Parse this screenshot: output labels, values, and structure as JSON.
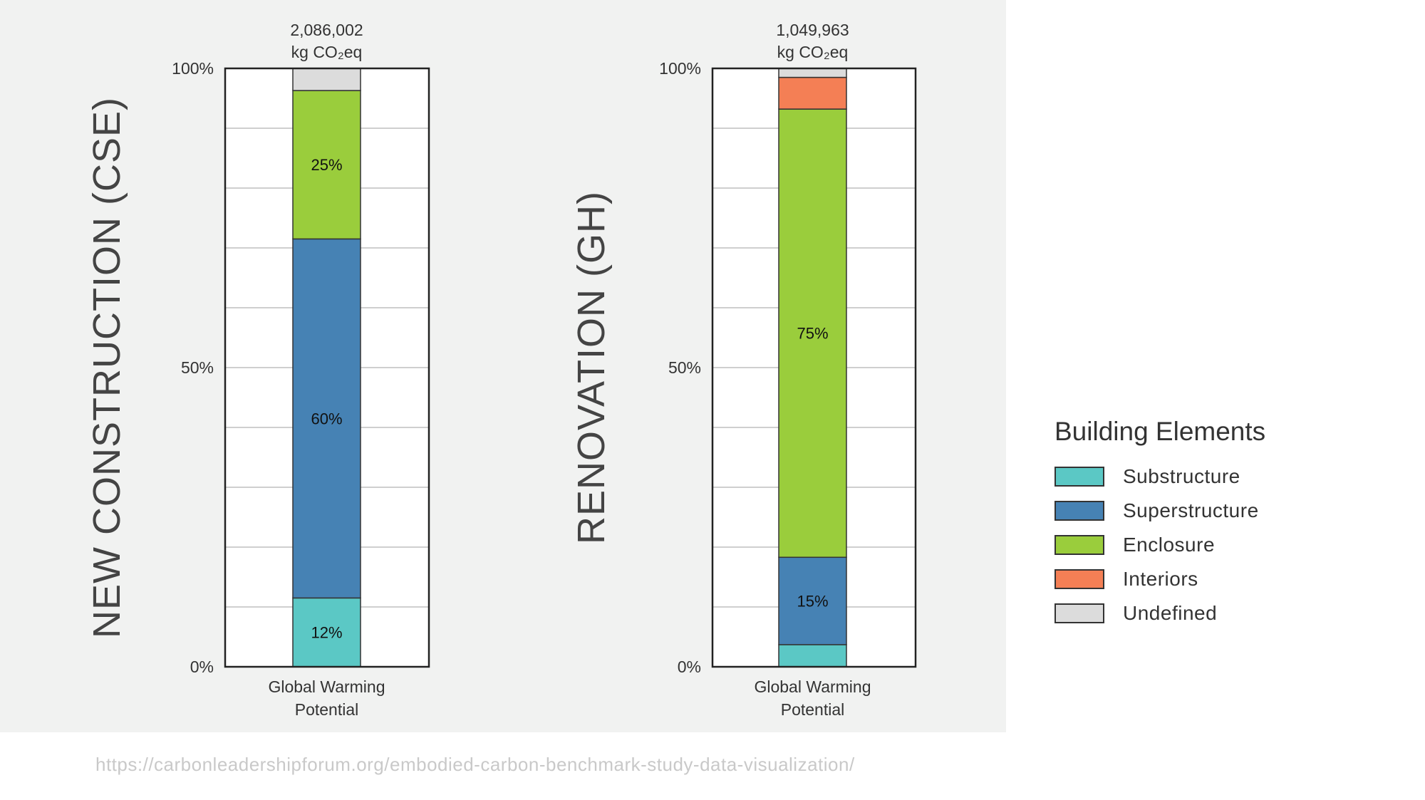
{
  "chart_data": [
    {
      "type": "bar",
      "stacked": true,
      "side_title": "NEW CONSTRUCTION (CSE)",
      "total_value": "2,086,002",
      "total_unit": "kg CO₂eq",
      "categories": [
        "Global Warming Potential"
      ],
      "category_lines": [
        "Global Warming",
        "Potential"
      ],
      "yticks": [
        "0%",
        "50%",
        "100%"
      ],
      "ylim": [
        0,
        100
      ],
      "grid": true,
      "series": [
        {
          "name": "Substructure",
          "values": [
            11.5
          ],
          "label": "12%"
        },
        {
          "name": "Superstructure",
          "values": [
            60
          ],
          "label": "60%"
        },
        {
          "name": "Enclosure",
          "values": [
            24.8
          ],
          "label": "25%"
        },
        {
          "name": "Interiors",
          "values": [
            0
          ],
          "label": ""
        },
        {
          "name": "Undefined",
          "values": [
            3.7
          ],
          "label": ""
        }
      ]
    },
    {
      "type": "bar",
      "stacked": true,
      "side_title": "RENOVATION (GH)",
      "total_value": "1,049,963",
      "total_unit": "kg CO₂eq",
      "categories": [
        "Global Warming Potential"
      ],
      "category_lines": [
        "Global Warming",
        "Potential"
      ],
      "yticks": [
        "0%",
        "50%",
        "100%"
      ],
      "ylim": [
        0,
        100
      ],
      "grid": true,
      "series": [
        {
          "name": "Substructure",
          "values": [
            3.7
          ],
          "label": ""
        },
        {
          "name": "Superstructure",
          "values": [
            14.6
          ],
          "label": "15%"
        },
        {
          "name": "Enclosure",
          "values": [
            74.9
          ],
          "label": "75%"
        },
        {
          "name": "Interiors",
          "values": [
            5.3
          ],
          "label": ""
        },
        {
          "name": "Undefined",
          "values": [
            1.5
          ],
          "label": ""
        }
      ]
    }
  ],
  "legend": {
    "title": "Building Elements",
    "placement": "right",
    "items": [
      {
        "name": "Substructure",
        "color": "#5bc8c5"
      },
      {
        "name": "Superstructure",
        "color": "#4682b4"
      },
      {
        "name": "Enclosure",
        "color": "#9acd3c"
      },
      {
        "name": "Interiors",
        "color": "#f47f55"
      },
      {
        "name": "Undefined",
        "color": "#dcdcdc"
      }
    ]
  },
  "source_url": "https://carbonleadershipforum.org/embodied-carbon-benchmark-study-data-visualization/"
}
